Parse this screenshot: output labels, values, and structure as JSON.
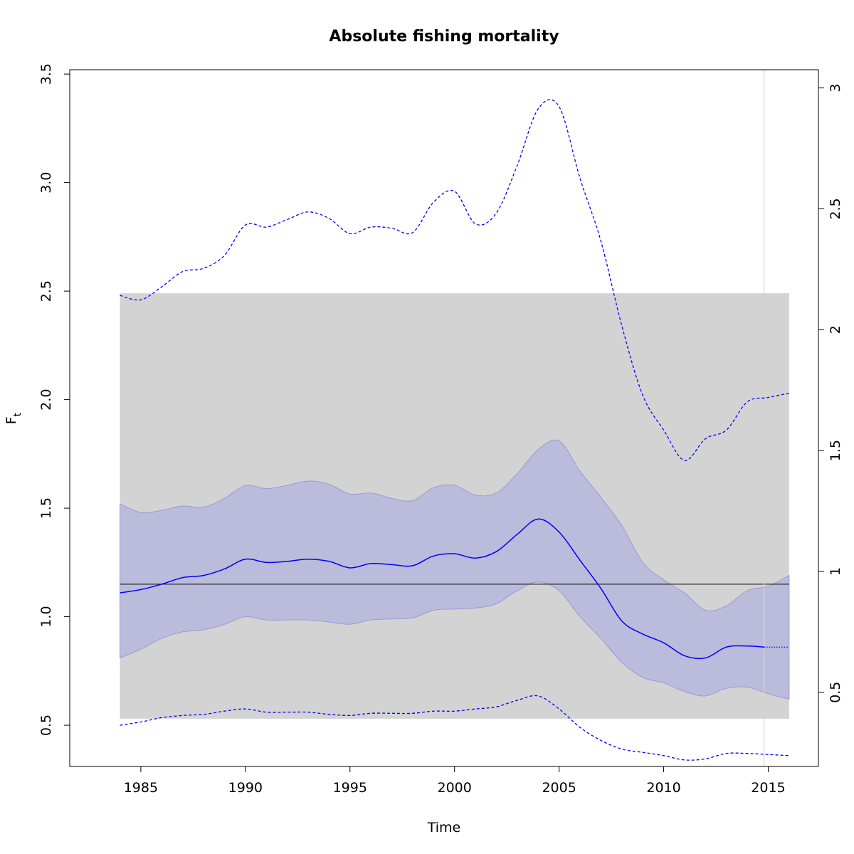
{
  "chart_data": {
    "type": "line",
    "title": "Absolute fishing mortality",
    "xlabel": "Time",
    "ylabel": "F",
    "ylabel_subscript": "t",
    "xlim": [
      1981.6,
      2017.4
    ],
    "ylim": [
      0.31,
      3.52
    ],
    "y2lim": [
      0.1931,
      3.0752
    ],
    "x_ticks": [
      "1985",
      "1990",
      "1995",
      "2000",
      "2005",
      "2010",
      "2015"
    ],
    "y_ticks": [
      "0.5",
      "1.0",
      "1.5",
      "2.0",
      "2.5",
      "3.0",
      "3.5"
    ],
    "y2_ticks": [
      "0.5",
      "1",
      "1.5",
      "2",
      "2.5",
      "3"
    ],
    "grid": false,
    "colors": {
      "estimate": "#0000ff",
      "ci_band_fill": "#bbbbdc",
      "ci_band_edge": "#9a9ad6",
      "prior_band": "#d3d3d3",
      "reference_line": "#000000",
      "vertical_line": "#d3d3d3",
      "frame": "#000000"
    },
    "prior_band": {
      "x": [
        1984,
        2016
      ],
      "y": [
        0.53,
        2.49
      ]
    },
    "reference_line": {
      "x": [
        1984,
        2016
      ],
      "y": 1.15
    },
    "vertical_line": {
      "x": 2014.8
    },
    "series": [
      {
        "role": "estimate",
        "style": "solid",
        "x": [
          1984,
          1985,
          1986,
          1987,
          1988,
          1989,
          1990,
          1991,
          1992,
          1993,
          1994,
          1995,
          1996,
          1997,
          1998,
          1999,
          2000,
          2001,
          2002,
          2003,
          2004,
          2005,
          2006,
          2007,
          2008,
          2009,
          2010,
          2011,
          2012,
          2013,
          2014,
          2014.8
        ],
        "y": [
          1.11,
          1.125,
          1.15,
          1.18,
          1.19,
          1.22,
          1.265,
          1.25,
          1.255,
          1.265,
          1.255,
          1.225,
          1.245,
          1.24,
          1.235,
          1.28,
          1.29,
          1.27,
          1.3,
          1.38,
          1.45,
          1.39,
          1.26,
          1.13,
          0.98,
          0.92,
          0.88,
          0.82,
          0.81,
          0.86,
          0.865,
          0.86
        ]
      },
      {
        "role": "forecast",
        "style": "dotted",
        "x": [
          2014.8,
          2016
        ],
        "y": [
          0.86,
          0.86
        ]
      },
      {
        "role": "ci_lower",
        "style": "band",
        "x": [
          1984,
          1985,
          1986,
          1987,
          1988,
          1989,
          1990,
          1991,
          1992,
          1993,
          1994,
          1995,
          1996,
          1997,
          1998,
          1999,
          2000,
          2001,
          2002,
          2003,
          2004,
          2005,
          2006,
          2007,
          2008,
          2009,
          2010,
          2011,
          2012,
          2013,
          2014,
          2015,
          2016
        ],
        "y": [
          0.81,
          0.85,
          0.9,
          0.93,
          0.94,
          0.965,
          1.0,
          0.985,
          0.985,
          0.985,
          0.975,
          0.965,
          0.985,
          0.99,
          0.995,
          1.03,
          1.035,
          1.04,
          1.06,
          1.12,
          1.16,
          1.12,
          1.0,
          0.9,
          0.79,
          0.72,
          0.695,
          0.655,
          0.635,
          0.67,
          0.675,
          0.645,
          0.62
        ]
      },
      {
        "role": "ci_upper",
        "style": "band",
        "x": [
          1984,
          1985,
          1986,
          1987,
          1988,
          1989,
          1990,
          1991,
          1992,
          1993,
          1994,
          1995,
          1996,
          1997,
          1998,
          1999,
          2000,
          2001,
          2002,
          2003,
          2004,
          2005,
          2006,
          2007,
          2008,
          2009,
          2010,
          2011,
          2012,
          2013,
          2014,
          2015,
          2016
        ],
        "y": [
          1.52,
          1.48,
          1.49,
          1.51,
          1.505,
          1.545,
          1.605,
          1.59,
          1.605,
          1.625,
          1.61,
          1.565,
          1.57,
          1.545,
          1.535,
          1.595,
          1.605,
          1.56,
          1.57,
          1.66,
          1.77,
          1.81,
          1.67,
          1.55,
          1.42,
          1.25,
          1.17,
          1.11,
          1.03,
          1.05,
          1.12,
          1.14,
          1.19
        ]
      },
      {
        "role": "outer_upper",
        "style": "dashed",
        "x": [
          1984,
          1985,
          1986,
          1987,
          1988,
          1989,
          1990,
          1991,
          1992,
          1993,
          1994,
          1995,
          1996,
          1997,
          1998,
          1999,
          2000,
          2001,
          2002,
          2003,
          2004,
          2005,
          2006,
          2007,
          2008,
          2009,
          2010,
          2011,
          2012,
          2013,
          2014,
          2015,
          2016
        ],
        "y": [
          2.48,
          2.46,
          2.52,
          2.59,
          2.605,
          2.665,
          2.805,
          2.795,
          2.83,
          2.865,
          2.835,
          2.765,
          2.795,
          2.79,
          2.77,
          2.91,
          2.96,
          2.81,
          2.86,
          3.08,
          3.34,
          3.35,
          3.02,
          2.73,
          2.34,
          2.02,
          1.86,
          1.72,
          1.82,
          1.86,
          1.99,
          2.01,
          2.03
        ]
      },
      {
        "role": "outer_lower",
        "style": "dashed",
        "x": [
          1984,
          1985,
          1986,
          1987,
          1988,
          1989,
          1990,
          1991,
          1992,
          1993,
          1994,
          1995,
          1996,
          1997,
          1998,
          1999,
          2000,
          2001,
          2002,
          2003,
          2004,
          2005,
          2006,
          2007,
          2008,
          2009,
          2010,
          2011,
          2012,
          2013,
          2014,
          2015,
          2016
        ],
        "y": [
          0.5,
          0.515,
          0.535,
          0.545,
          0.55,
          0.565,
          0.575,
          0.56,
          0.56,
          0.56,
          0.55,
          0.545,
          0.555,
          0.555,
          0.555,
          0.565,
          0.565,
          0.575,
          0.585,
          0.615,
          0.635,
          0.575,
          0.49,
          0.43,
          0.39,
          0.375,
          0.36,
          0.34,
          0.345,
          0.37,
          0.37,
          0.365,
          0.36
        ]
      }
    ]
  }
}
